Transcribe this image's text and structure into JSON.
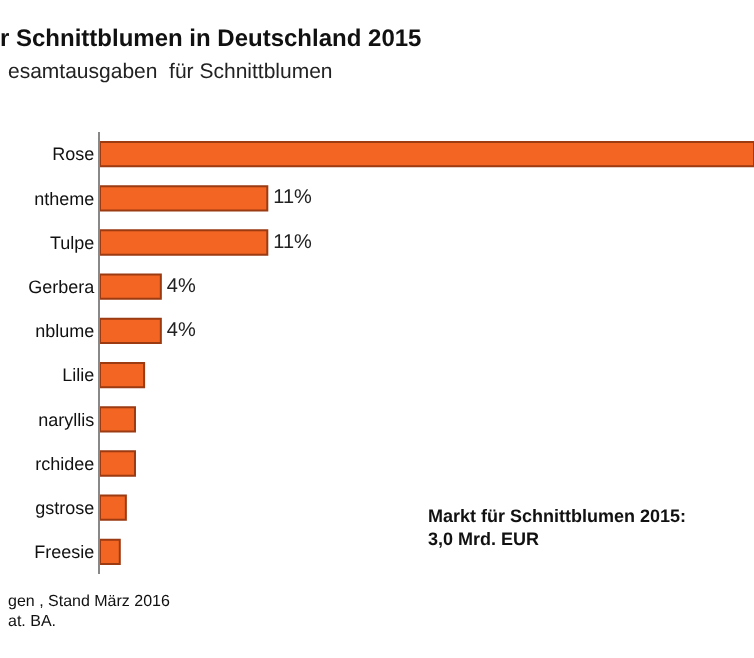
{
  "chart_data": {
    "type": "bar",
    "orientation": "horizontal",
    "title": "r Schnittblumen in Deutschland 2015",
    "subtitle": "esamtausgaben  für Schnittblumen",
    "categories": [
      "Rose",
      "ntheme",
      "Tulpe",
      "Gerbera",
      "nblume",
      "Lilie",
      "naryllis",
      "rchidee",
      "gstrose",
      "Freesie"
    ],
    "values": [
      43,
      11,
      11,
      4,
      4,
      2.9,
      2.3,
      2.3,
      1.7,
      1.3
    ],
    "value_labels": [
      null,
      "11%",
      "11%",
      "4%",
      "4%",
      null,
      null,
      null,
      null,
      null
    ],
    "color": "#f26522",
    "annotations": [
      "Markt für Schnittblumen 2015:\n3,0 Mrd. EUR",
      "gen , Stand März 2016",
      "at. BA."
    ],
    "legend": false
  }
}
